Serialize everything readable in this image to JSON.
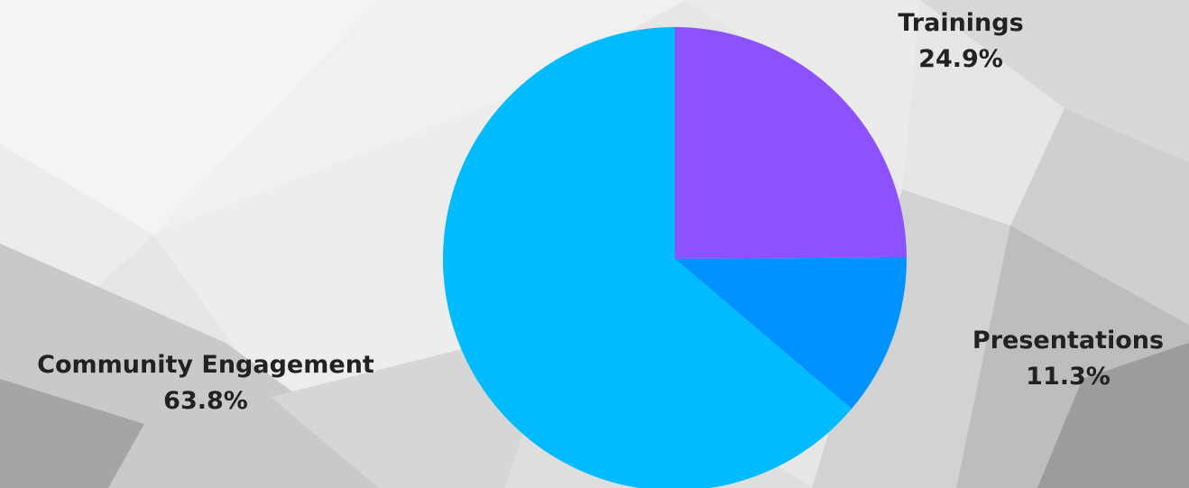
{
  "chart_data": {
    "type": "pie",
    "slices": [
      {
        "label": "Trainings",
        "value": 24.9,
        "value_label": "24.9%",
        "color": "#8c52ff"
      },
      {
        "label": "Presentations",
        "value": 11.3,
        "value_label": "11.3%",
        "color": "#0093ff"
      },
      {
        "label": "Community Engagement",
        "value": 63.8,
        "value_label": "63.8%",
        "color": "#00bbff"
      }
    ],
    "start_angle": "12 o'clock",
    "direction": "clockwise",
    "legend": "none"
  }
}
